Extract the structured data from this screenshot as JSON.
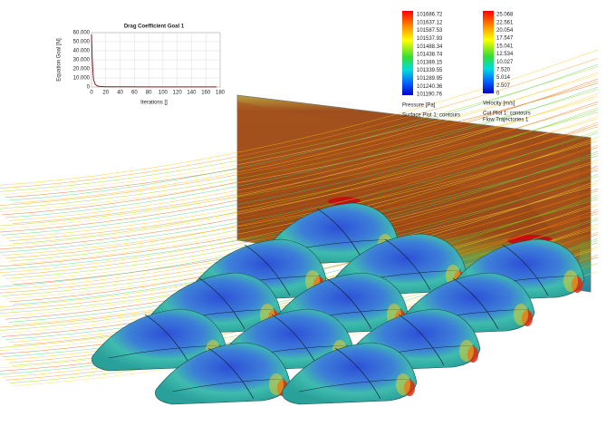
{
  "chart_data": {
    "type": "line",
    "title": "Drag Coefficient Goal 1",
    "x_label": "Iterations []",
    "y_label": "Equation Goal [N]",
    "x": [
      0,
      1,
      2,
      3,
      5,
      8,
      12,
      20,
      40,
      80,
      120,
      160,
      175
    ],
    "series": [
      {
        "name": "Drag Coefficient Goal 1",
        "color": "#8b1a1a",
        "values": [
          58000,
          32000,
          16000,
          8000,
          3000,
          1200,
          600,
          300,
          200,
          150,
          120,
          100,
          100
        ]
      }
    ],
    "xlim": [
      0,
      180
    ],
    "xticks": [
      0,
      20,
      40,
      60,
      80,
      100,
      120,
      140,
      160,
      180
    ],
    "ylim": [
      0,
      60000
    ],
    "yticks": [
      0,
      {
        "value": 10000,
        "label": "10.000"
      },
      {
        "value": 20000,
        "label": "20.000"
      },
      {
        "value": 30000,
        "label": "30.000"
      },
      {
        "value": 40000,
        "label": "40.000"
      },
      {
        "value": 50000,
        "label": "50.000"
      },
      {
        "value": 60000,
        "label": "60.000"
      }
    ],
    "grid": true
  },
  "legends": [
    {
      "labels": [
        "101686.72",
        "101637.12",
        "101587.53",
        "101537.93",
        "101488.34",
        "101438.74",
        "101389.15",
        "101339.55",
        "101289.95",
        "101240.36",
        "101190.76"
      ],
      "unit": "Pressure [Pa]",
      "captions": [
        "Surface Plot 1: contours"
      ]
    },
    {
      "labels": [
        "25.068",
        "22.561",
        "20.054",
        "17.547",
        "15.041",
        "12.534",
        "10.027",
        "7.520",
        "5.014",
        "2.507",
        "0"
      ],
      "unit": "Velocity [m/s]",
      "captions": [
        "Cut Plot 1: contours",
        "Flow Trajectories 1"
      ]
    }
  ]
}
